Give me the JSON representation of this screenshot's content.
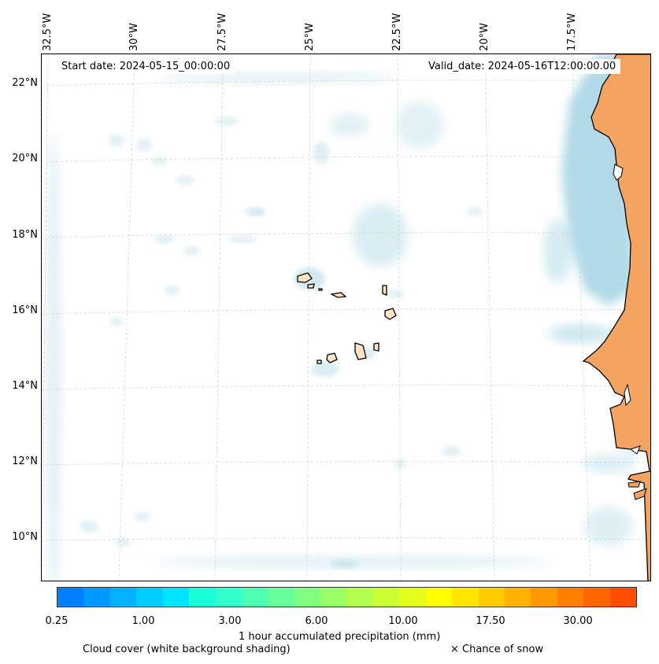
{
  "map": {
    "start_label": "Start date: 2024-05-15_00:00:00",
    "valid_label": "Valid_date: 2024-05-16T12:00:00.00",
    "longitude_labels": [
      "32.5°W",
      "30°W",
      "27.5°W",
      "25°W",
      "22.5°W",
      "20°W",
      "17.5°W"
    ],
    "latitude_labels": [
      "22°N",
      "20°N",
      "18°N",
      "16°N",
      "14°N",
      "12°N",
      "10°N"
    ],
    "land_color": "#f4a460",
    "cloud_color": "#add8e6"
  },
  "colorbar": {
    "colors": [
      "#0080ff",
      "#0099ff",
      "#00b2ff",
      "#00ccff",
      "#00e5ff",
      "#1affd9",
      "#33ffcc",
      "#4dffb2",
      "#66ff99",
      "#80ff80",
      "#99ff66",
      "#b2ff4d",
      "#ccff33",
      "#e5ff1a",
      "#ffff00",
      "#ffe500",
      "#ffcc00",
      "#ffb200",
      "#ff9900",
      "#ff8000",
      "#ff6600",
      "#ff4c00"
    ],
    "tick_labels": [
      "0.25",
      "1.00",
      "3.00",
      "6.00",
      "10.00",
      "17.50",
      "30.00"
    ],
    "label": "1 hour accumulated precipitation (mm)"
  },
  "legend": {
    "cloud_cover": "Cloud cover (white background shading)",
    "snow": "× Chance of snow"
  }
}
